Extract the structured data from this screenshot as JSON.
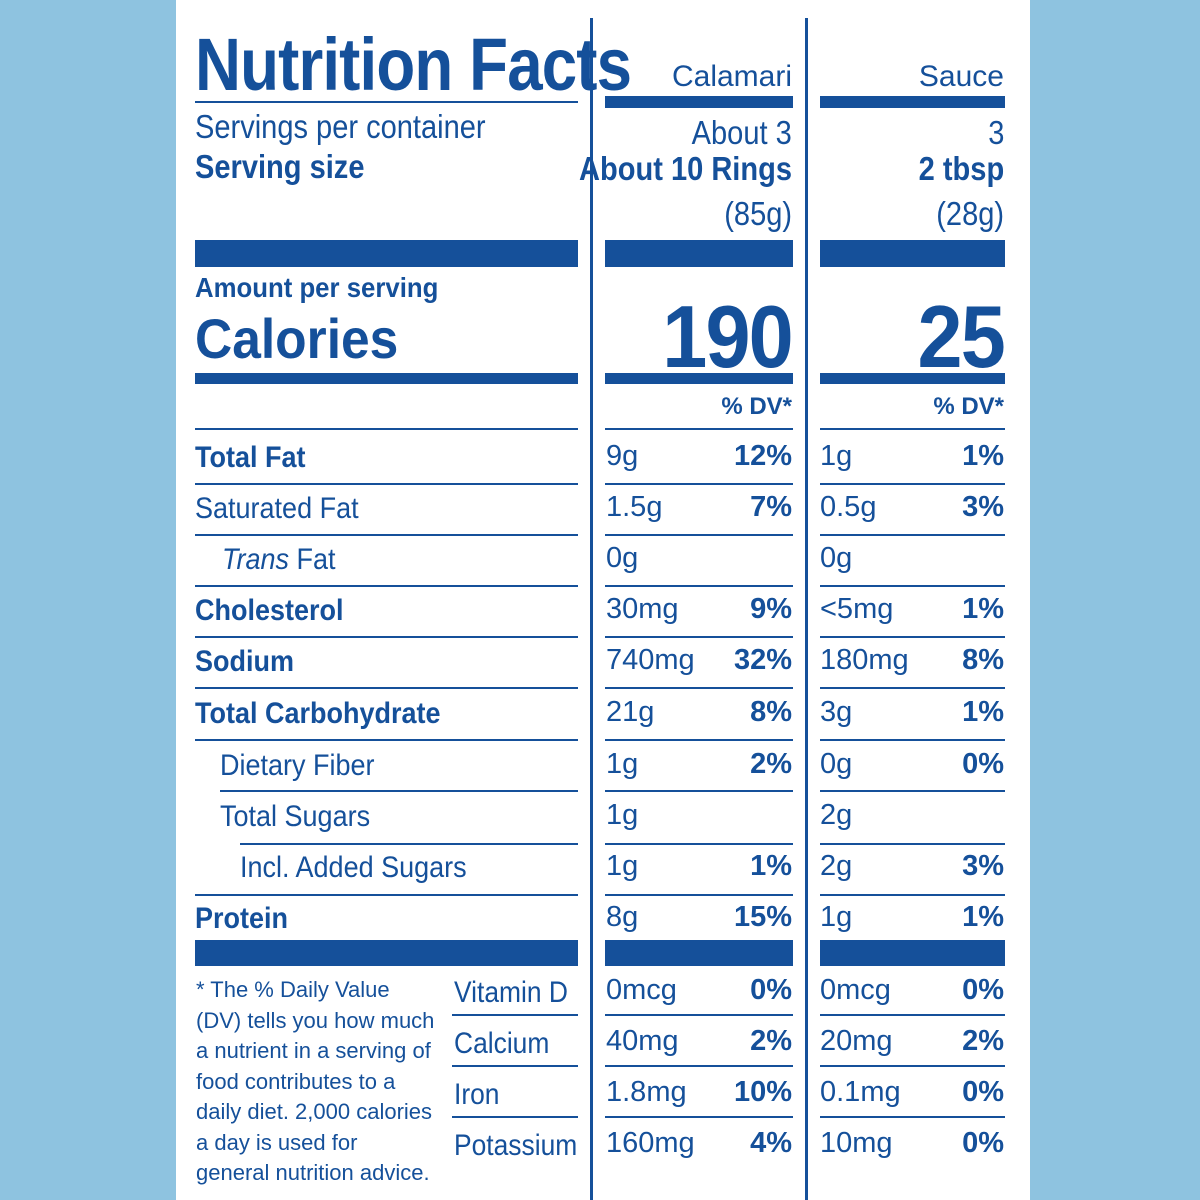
{
  "header": {
    "title": "Nutrition Facts",
    "col1_name": "Calamari",
    "col2_name": "Sauce"
  },
  "servings": {
    "servings_label": "Servings per container",
    "size_label": "Serving size",
    "col1_servings": "About 3",
    "col1_size": "About 10 Rings",
    "col1_weight": "(85g)",
    "col2_servings": "3",
    "col2_size": "2 tbsp",
    "col2_weight": "(28g)"
  },
  "calories": {
    "amount_label": "Amount per serving",
    "label": "Calories",
    "col1": "190",
    "col2": "25"
  },
  "dv_header": {
    "col1": "% DV*",
    "col2": "% DV*"
  },
  "nutrients": [
    {
      "name": "Total Fat",
      "c1_amt": "9g",
      "c1_dv": "12%",
      "c2_amt": "1g",
      "c2_dv": "1%"
    },
    {
      "name": "Saturated Fat",
      "c1_amt": "1.5g",
      "c1_dv": "7%",
      "c2_amt": "0.5g",
      "c2_dv": "3%"
    },
    {
      "name_italic": "Trans",
      "name_rest": " Fat",
      "c1_amt": "0g",
      "c1_dv": "",
      "c2_amt": "0g",
      "c2_dv": ""
    },
    {
      "name": "Cholesterol",
      "c1_amt": "30mg",
      "c1_dv": "9%",
      "c2_amt": "<5mg",
      "c2_dv": "1%"
    },
    {
      "name": "Sodium",
      "c1_amt": "740mg",
      "c1_dv": "32%",
      "c2_amt": "180mg",
      "c2_dv": "8%"
    },
    {
      "name": "Total Carbohydrate",
      "c1_amt": "21g",
      "c1_dv": "8%",
      "c2_amt": "3g",
      "c2_dv": "1%"
    },
    {
      "name": "Dietary Fiber",
      "c1_amt": "1g",
      "c1_dv": "2%",
      "c2_amt": "0g",
      "c2_dv": "0%"
    },
    {
      "name": "Total Sugars",
      "c1_amt": "1g",
      "c1_dv": "",
      "c2_amt": "2g",
      "c2_dv": ""
    },
    {
      "name": "Incl. Added Sugars",
      "c1_amt": "1g",
      "c1_dv": "1%",
      "c2_amt": "2g",
      "c2_dv": "3%"
    },
    {
      "name": "Protein",
      "c1_amt": "8g",
      "c1_dv": "15%",
      "c2_amt": "1g",
      "c2_dv": "1%"
    }
  ],
  "footnote": "* The % Daily Value (DV) tells you how much a nutrient in a serving of food contributes to a daily diet. 2,000 calories a day is used for general nutrition advice.",
  "vitamins": [
    {
      "name": "Vitamin D",
      "c1_amt": "0mcg",
      "c1_dv": "0%",
      "c2_amt": "0mcg",
      "c2_dv": "0%"
    },
    {
      "name": "Calcium",
      "c1_amt": "40mg",
      "c1_dv": "2%",
      "c2_amt": "20mg",
      "c2_dv": "2%"
    },
    {
      "name": "Iron",
      "c1_amt": "1.8mg",
      "c1_dv": "10%",
      "c2_amt": "0.1mg",
      "c2_dv": "0%"
    },
    {
      "name": "Potassium",
      "c1_amt": "160mg",
      "c1_dv": "4%",
      "c2_amt": "10mg",
      "c2_dv": "0%"
    }
  ],
  "colors": {
    "ink": "#15509a",
    "background": "#8ec3e0",
    "panel": "#ffffff"
  }
}
